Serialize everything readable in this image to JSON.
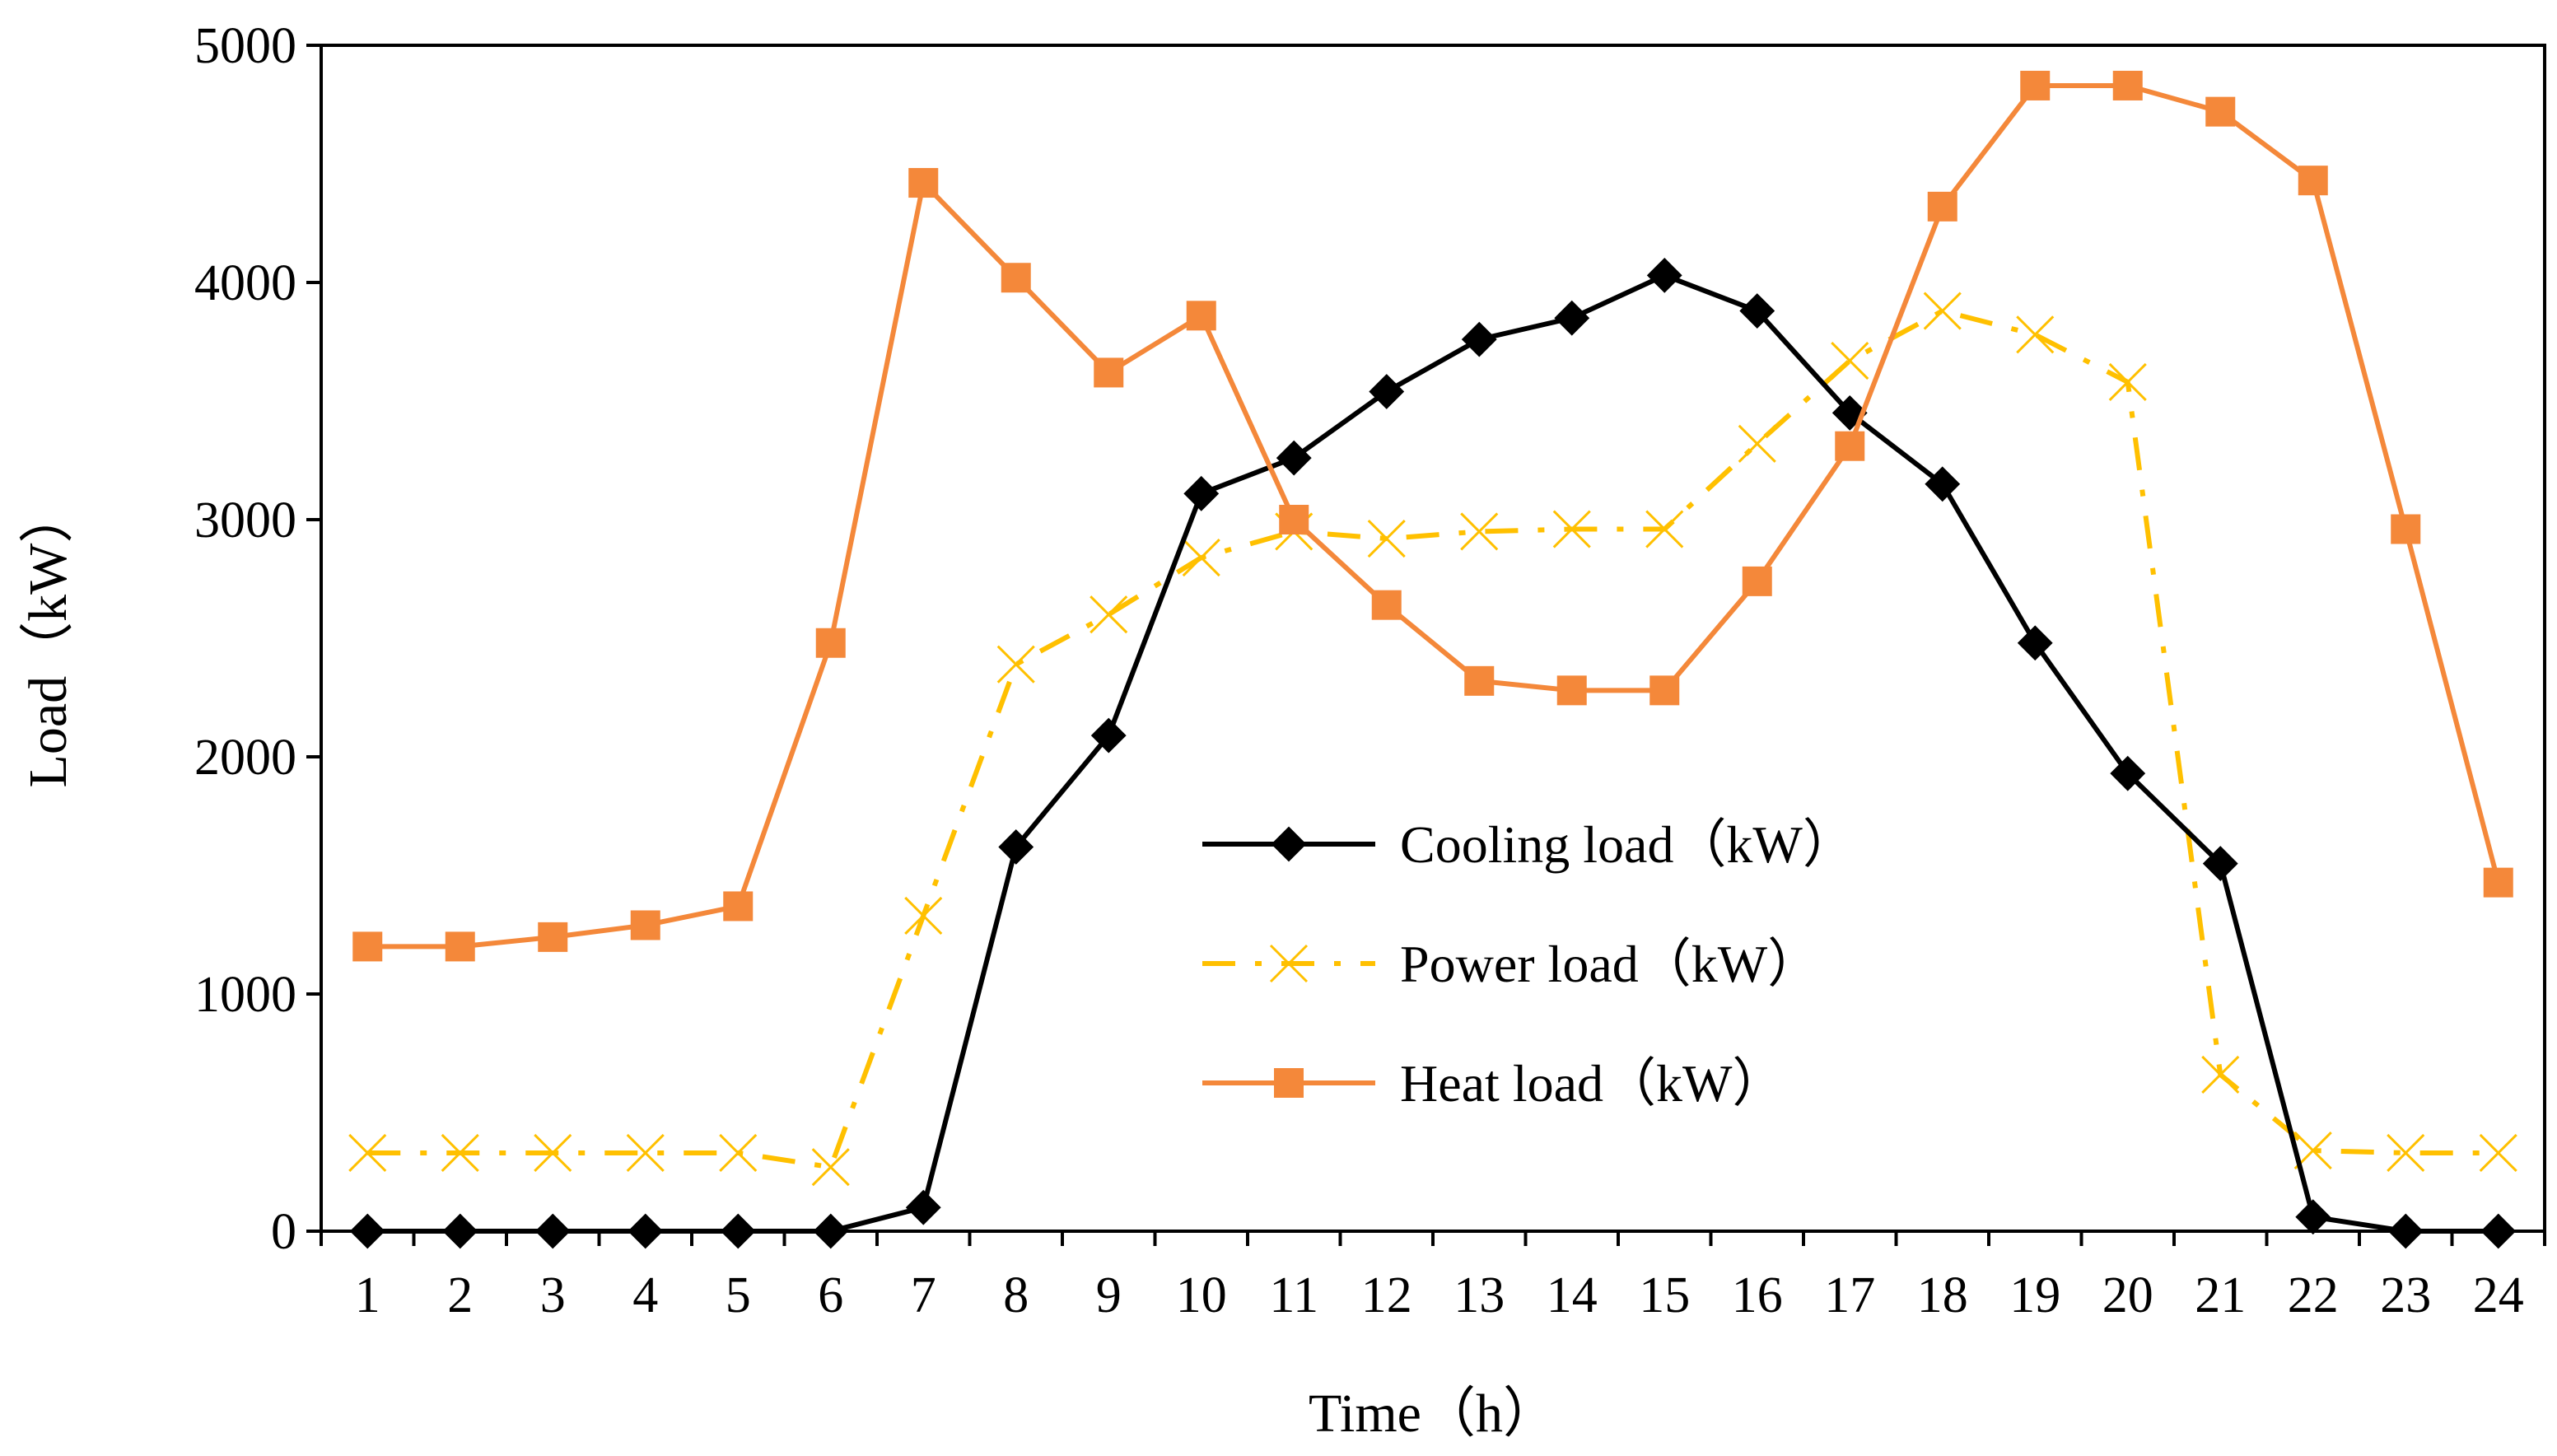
{
  "chart_data": {
    "type": "line",
    "title": "",
    "xlabel": "Time（h）",
    "ylabel": "Load（kW）",
    "ylim": [
      0,
      5000
    ],
    "yticks": [
      0,
      1000,
      2000,
      3000,
      4000,
      5000
    ],
    "categories": [
      "1",
      "2",
      "3",
      "4",
      "5",
      "6",
      "7",
      "8",
      "9",
      "10",
      "11",
      "12",
      "13",
      "14",
      "15",
      "16",
      "17",
      "18",
      "19",
      "20",
      "21",
      "22",
      "23",
      "24"
    ],
    "grid": false,
    "legend_position": "center-right",
    "series": [
      {
        "name": "Cooling load（kW）",
        "color": "#000000",
        "line_style": "solid",
        "marker": "diamond",
        "values": [
          0,
          0,
          0,
          0,
          0,
          0,
          100,
          1620,
          2090,
          3110,
          3260,
          3540,
          3760,
          3850,
          4030,
          3880,
          3450,
          3150,
          2480,
          1930,
          1550,
          60,
          0,
          0
        ]
      },
      {
        "name": "Power load（kW）",
        "color": "#FFC000",
        "line_style": "dashdot",
        "marker": "x",
        "values": [
          330,
          330,
          330,
          330,
          330,
          270,
          1330,
          2390,
          2600,
          2840,
          2950,
          2920,
          2950,
          2960,
          2960,
          3320,
          3670,
          3880,
          3780,
          3580,
          660,
          340,
          330,
          330
        ]
      },
      {
        "name": "Heat load（kW）",
        "color": "#F4883A",
        "line_style": "solid",
        "marker": "square",
        "values": [
          1200,
          1200,
          1240,
          1290,
          1370,
          2480,
          4420,
          4020,
          3620,
          3860,
          3000,
          2640,
          2320,
          2280,
          2280,
          2740,
          3310,
          4320,
          4830,
          4830,
          4720,
          4430,
          2960,
          1470
        ]
      }
    ]
  }
}
